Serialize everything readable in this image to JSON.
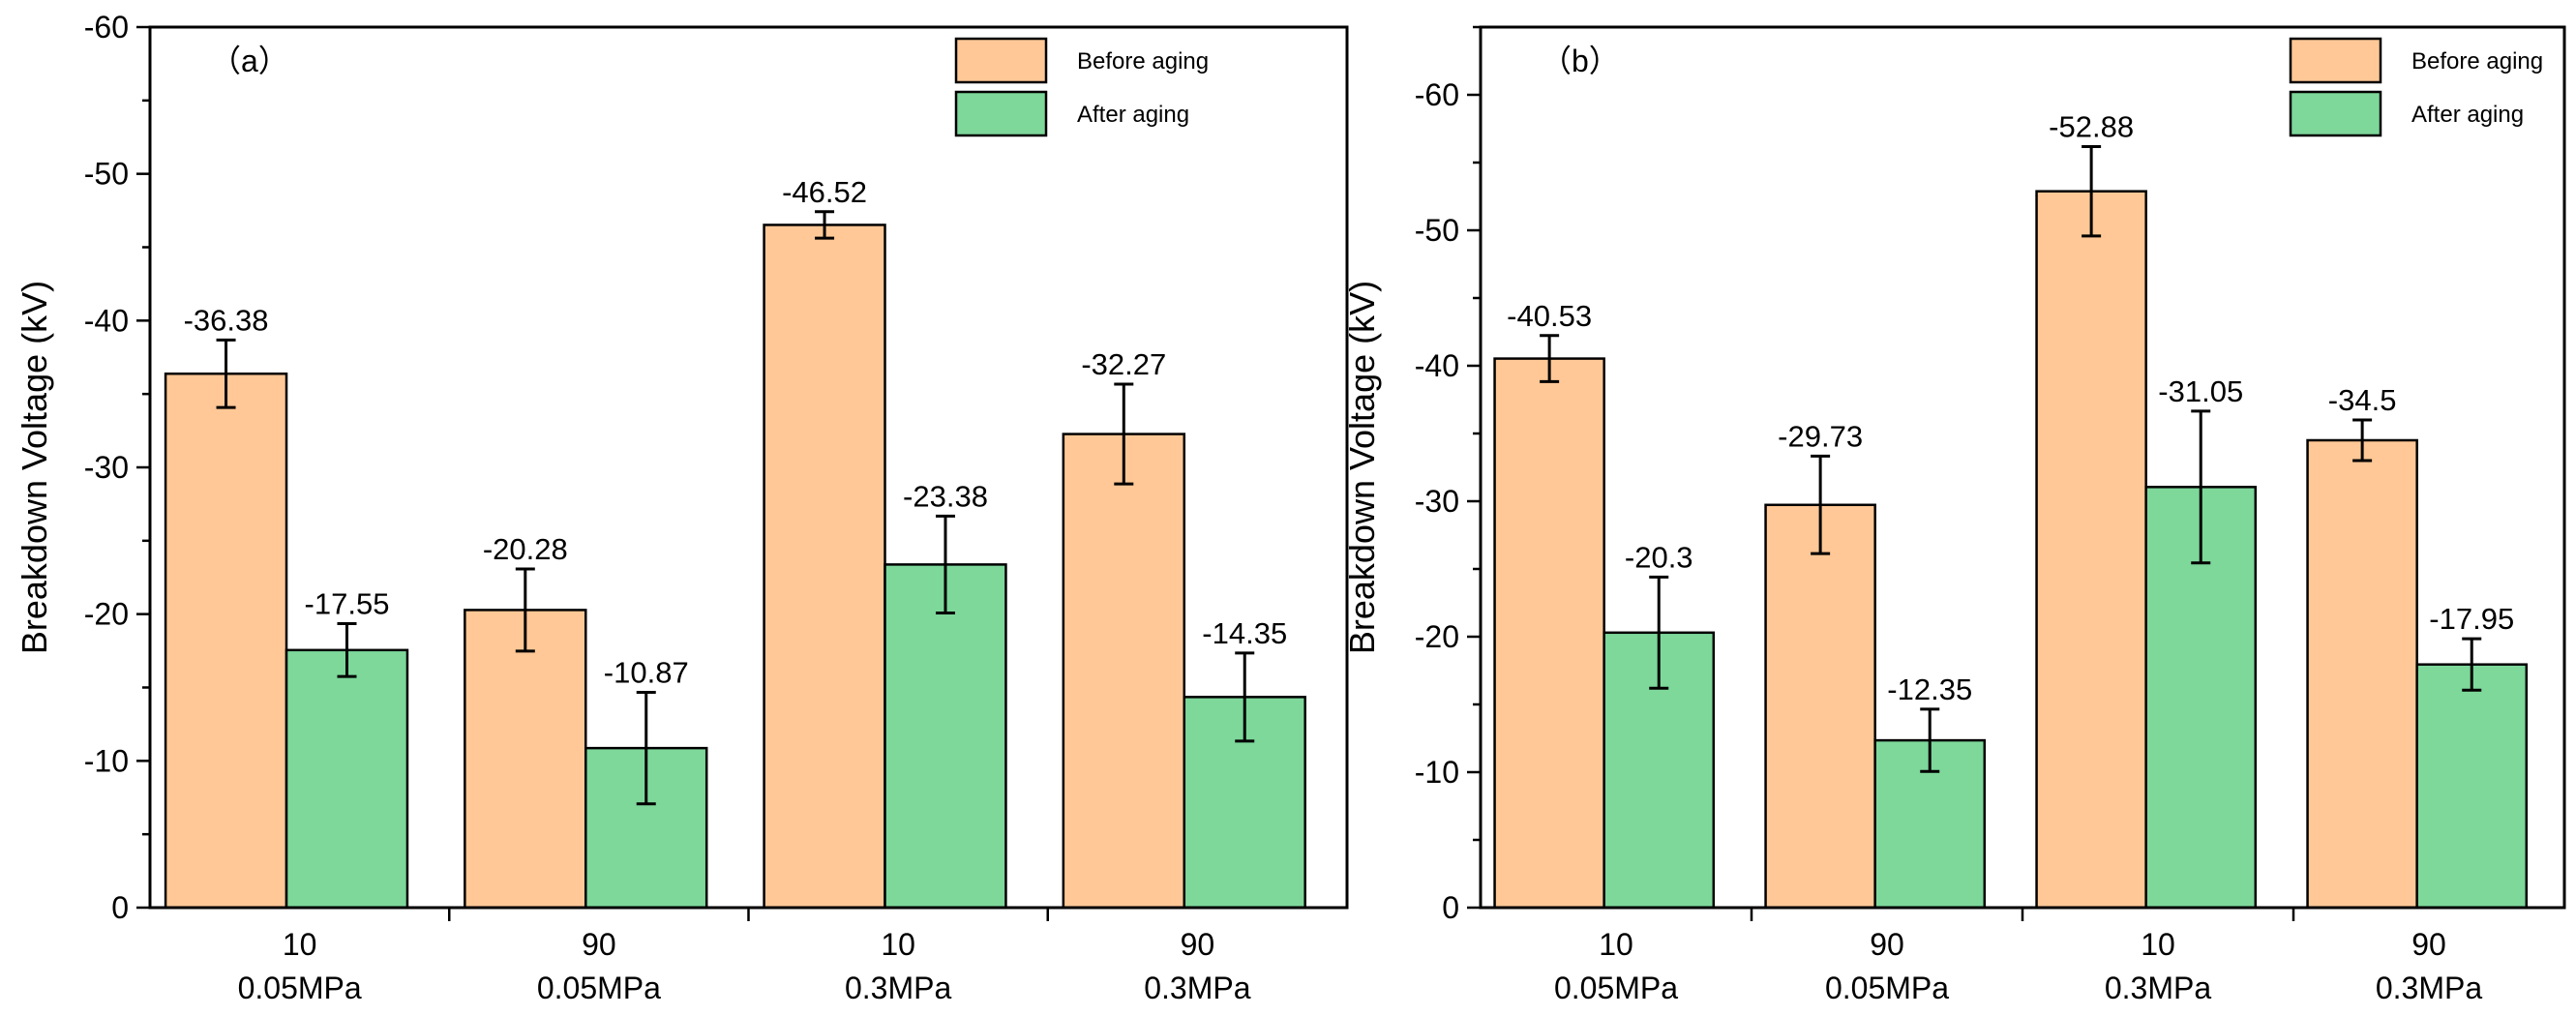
{
  "colors": {
    "before": "#FFC896",
    "after": "#7DD89A",
    "axis": "#000000"
  },
  "chart_data": [
    {
      "type": "bar",
      "panel_label": "（a）",
      "ylabel": "Breakdown Voltage (kV)",
      "ylim": [
        0,
        -60
      ],
      "yticks": [
        0,
        -10,
        -20,
        -30,
        -40,
        -50,
        -60
      ],
      "ytick_labels": [
        "0",
        "-10",
        "-20",
        "-30",
        "-40",
        "-50",
        "-60"
      ],
      "categories": [
        {
          "line1": "10",
          "line2": "0.05MPa"
        },
        {
          "line1": "90",
          "line2": "0.05MPa"
        },
        {
          "line1": "10",
          "line2": "0.3MPa"
        },
        {
          "line1": "90",
          "line2": "0.3MPa"
        }
      ],
      "legend_position": "top-right",
      "series": [
        {
          "name": "Before aging",
          "color_key": "before",
          "values": [
            -36.38,
            -20.28,
            -46.52,
            -32.27
          ],
          "labels": [
            "-36.38",
            "-20.28",
            "-46.52",
            "-32.27"
          ],
          "errors": [
            2.3,
            2.8,
            0.9,
            3.4
          ]
        },
        {
          "name": "After aging",
          "color_key": "after",
          "values": [
            -17.55,
            -10.87,
            -23.38,
            -14.35
          ],
          "labels": [
            "-17.55",
            "-10.87",
            "-23.38",
            "-14.35"
          ],
          "errors": [
            1.8,
            3.8,
            3.3,
            3.0
          ]
        }
      ]
    },
    {
      "type": "bar",
      "panel_label": "（b）",
      "ylabel": "Breakdown Voltage (kV)",
      "ylim": [
        0,
        -65
      ],
      "yticks": [
        0,
        -10,
        -20,
        -30,
        -40,
        -50,
        -60
      ],
      "ytick_labels": [
        "0",
        "-10",
        "-20",
        "-30",
        "-40",
        "-50",
        "-60"
      ],
      "categories": [
        {
          "line1": "10",
          "line2": "0.05MPa"
        },
        {
          "line1": "90",
          "line2": "0.05MPa"
        },
        {
          "line1": "10",
          "line2": "0.3MPa"
        },
        {
          "line1": "90",
          "line2": "0.3MPa"
        }
      ],
      "legend_position": "top-right",
      "series": [
        {
          "name": "Before aging",
          "color_key": "before",
          "values": [
            -40.53,
            -29.73,
            -52.88,
            -34.5
          ],
          "labels": [
            "-40.53",
            "-29.73",
            "-52.88",
            "-34.5"
          ],
          "errors": [
            1.7,
            3.6,
            3.3,
            1.5
          ]
        },
        {
          "name": "After aging",
          "color_key": "after",
          "values": [
            -20.3,
            -12.35,
            -31.05,
            -17.95
          ],
          "labels": [
            "-20.3",
            "-12.35",
            "-31.05",
            "-17.95"
          ],
          "errors": [
            4.1,
            2.3,
            5.6,
            1.9
          ]
        }
      ]
    }
  ]
}
